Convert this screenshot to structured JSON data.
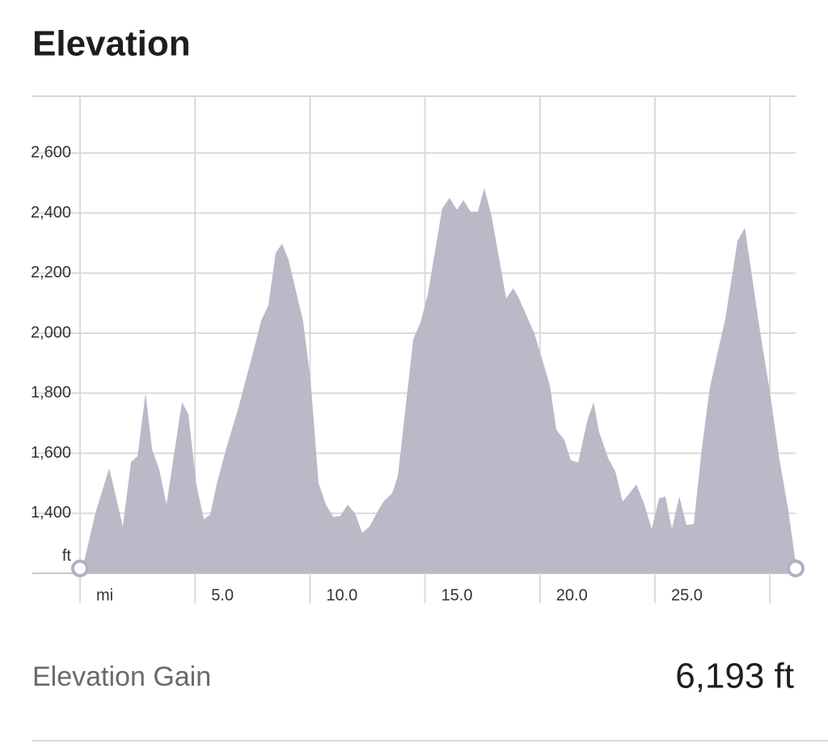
{
  "header": {
    "title": "Elevation"
  },
  "chart_data": {
    "type": "area",
    "color": "#b9b9c8",
    "x": [
      0.18,
      0.67,
      1.27,
      1.86,
      2.22,
      2.5,
      2.85,
      3.13,
      3.45,
      3.76,
      4.43,
      4.71,
      5.06,
      5.38,
      5.66,
      5.94,
      6.36,
      6.89,
      7.49,
      7.88,
      8.19,
      8.51,
      8.79,
      9.07,
      9.7,
      10.02,
      10.37,
      10.69,
      11.01,
      11.32,
      11.64,
      11.96,
      12.27,
      12.59,
      12.97,
      13.22,
      13.57,
      13.82,
      14.49,
      14.8,
      15.12,
      15.75,
      16.07,
      16.39,
      16.67,
      16.98,
      17.3,
      17.58,
      17.9,
      18.53,
      18.84,
      19.09,
      19.76,
      20.43,
      20.71,
      21.06,
      21.34,
      21.66,
      22.05,
      22.33,
      22.57,
      22.96,
      23.28,
      23.59,
      23.87,
      24.19,
      24.51,
      24.86,
      25.18,
      25.46,
      25.74,
      26.06,
      26.37,
      26.69,
      27.04,
      27.39,
      27.74,
      28.06,
      28.59,
      28.91,
      29.57,
      30.0,
      30.41,
      30.8,
      31.12
    ],
    "values": [
      1240,
      1402,
      1550,
      1356,
      1571,
      1590,
      1800,
      1614,
      1544,
      1429,
      1770,
      1730,
      1496,
      1380,
      1396,
      1496,
      1617,
      1752,
      1926,
      2042,
      2093,
      2268,
      2298,
      2244,
      2039,
      1846,
      1501,
      1429,
      1388,
      1391,
      1429,
      1399,
      1335,
      1356,
      1410,
      1442,
      1466,
      1523,
      1980,
      2034,
      2128,
      2416,
      2451,
      2411,
      2443,
      2405,
      2405,
      2483,
      2389,
      2115,
      2150,
      2115,
      1999,
      1827,
      1679,
      1644,
      1577,
      1569,
      1706,
      1770,
      1671,
      1585,
      1539,
      1439,
      1464,
      1496,
      1437,
      1348,
      1450,
      1456,
      1348,
      1456,
      1361,
      1364,
      1617,
      1819,
      1940,
      2047,
      2308,
      2351,
      2007,
      1805,
      1582,
      1410,
      1235
    ],
    "xlim": [
      0,
      31.12
    ],
    "ylim": [
      1200,
      2800
    ],
    "xticks": [
      {
        "value": 0,
        "label": "mi"
      },
      {
        "value": 5,
        "label": "5.0"
      },
      {
        "value": 10,
        "label": "10.0"
      },
      {
        "value": 15,
        "label": "15.0"
      },
      {
        "value": 20,
        "label": "20.0"
      },
      {
        "value": 25,
        "label": "25.0"
      }
    ],
    "xgrid": [
      0,
      5,
      10,
      15,
      20,
      25,
      30
    ],
    "yticks": [
      {
        "value": 1200,
        "label": "ft"
      },
      {
        "value": 1400,
        "label": "1,400"
      },
      {
        "value": 1600,
        "label": "1,600"
      },
      {
        "value": 1800,
        "label": "1,800"
      },
      {
        "value": 2000,
        "label": "2,000"
      },
      {
        "value": 2200,
        "label": "2,200"
      },
      {
        "value": 2400,
        "label": "2,400"
      },
      {
        "value": 2600,
        "label": "2,600"
      }
    ],
    "grid": true
  },
  "stats": {
    "label": "Elevation Gain",
    "value": "6,193 ft"
  }
}
